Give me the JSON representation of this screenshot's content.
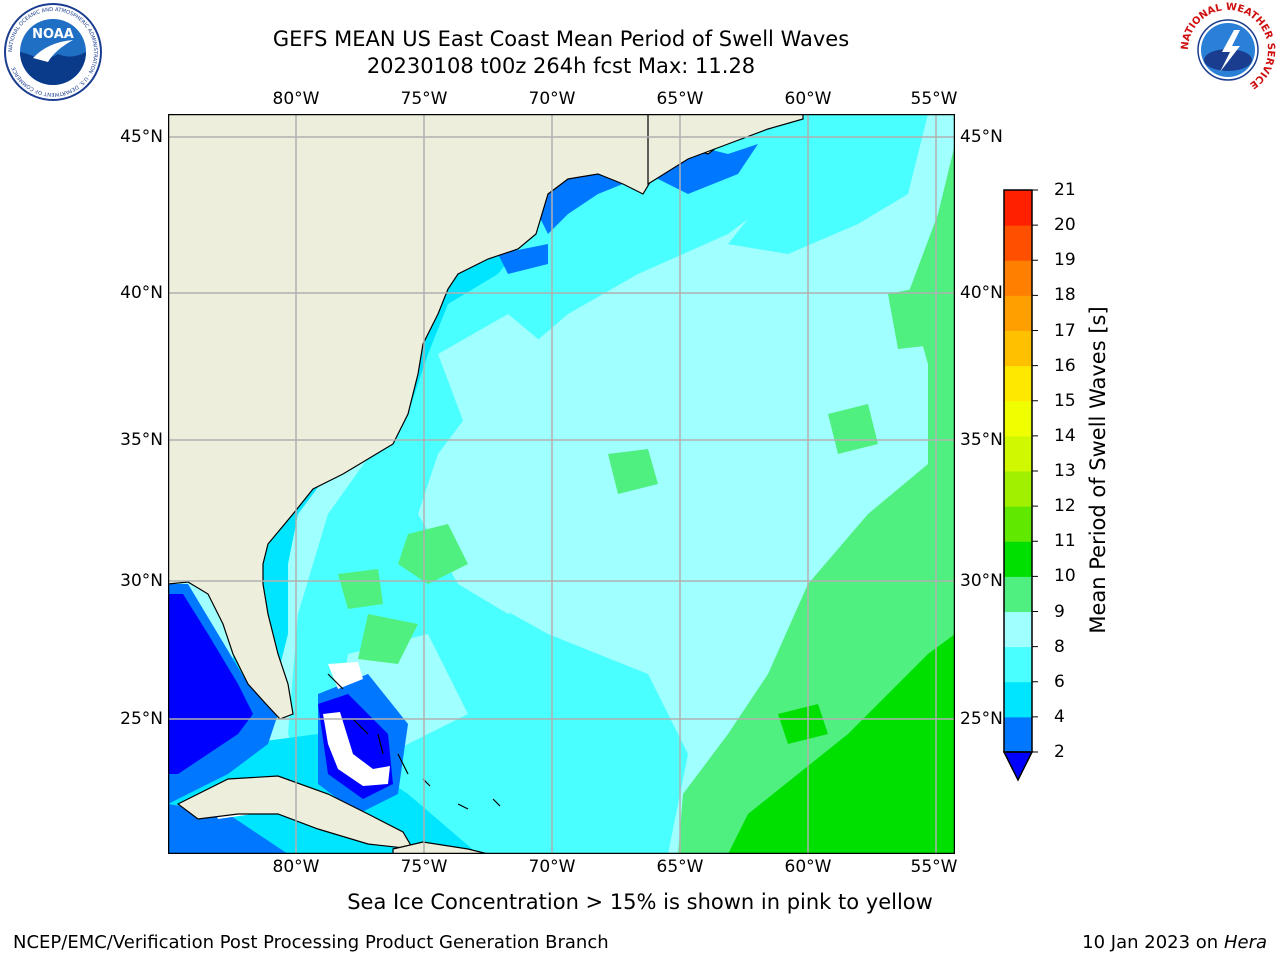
{
  "title": {
    "line1": "GEFS MEAN US East Coast Mean Period of Swell Waves",
    "line2": "20230108 t00z 264h fcst   Max: 11.28"
  },
  "map": {
    "lon_labels": [
      "80°W",
      "75°W",
      "70°W",
      "65°W",
      "60°W",
      "55°W"
    ],
    "lat_labels": [
      "45°N",
      "40°N",
      "35°N",
      "30°N",
      "25°N"
    ],
    "colors": {
      "land": "#eeeedd",
      "grid": "#b0b0b0",
      "coast": "#000000",
      "ice_free_white": "#ffffff"
    }
  },
  "colorbar": {
    "title": "Mean Period of Swell Waves [s]",
    "levels": [
      "2",
      "4",
      "6",
      "8",
      "9",
      "10",
      "11",
      "12",
      "13",
      "14",
      "15",
      "16",
      "17",
      "18",
      "19",
      "20",
      "21"
    ],
    "colors": [
      "#0077ff",
      "#00e5ff",
      "#4affff",
      "#a0ffff",
      "#50f080",
      "#00e000",
      "#60e800",
      "#a0f000",
      "#d0f800",
      "#f0ff00",
      "#ffe800",
      "#ffc000",
      "#ffa000",
      "#ff8000",
      "#ff5000",
      "#ff2000"
    ],
    "underflow_color": "#0000ff"
  },
  "logos": {
    "left": {
      "text": "NOAA",
      "ring_text": "NATIONAL OCEANIC AND ATMOSPHERIC ADMINISTRATION · U.S. DEPARTMENT OF COMMERCE"
    },
    "right": {
      "ring_text": "NATIONAL WEATHER SERVICE"
    }
  },
  "note": "Sea Ice Concentration > 15% is shown in pink to yellow",
  "footer": {
    "left": "NCEP/EMC/Verification Post Processing Product Generation Branch",
    "right_prefix": "10 Jan 2023 on ",
    "right_host": "Hera"
  }
}
